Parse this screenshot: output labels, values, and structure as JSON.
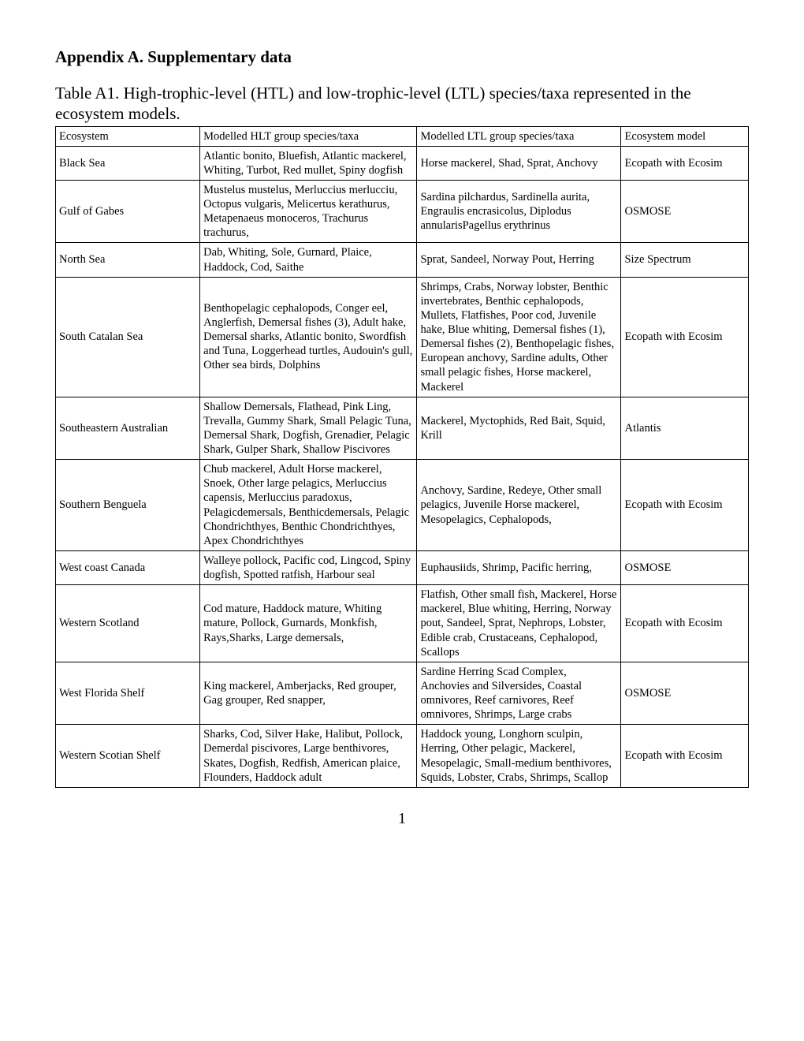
{
  "heading": "Appendix A. Supplementary data",
  "caption": "Table A1. High-trophic-level (HTL) and low-trophic-level (LTL) species/taxa represented in the ecosystem models.",
  "columns": {
    "ecosystem": "Ecosystem",
    "hlt": "Modelled HLT group species/taxa",
    "ltl": "Modelled LTL group species/taxa",
    "model": "Ecosystem model"
  },
  "rows": [
    {
      "ecosystem": "Black Sea",
      "hlt": "Atlantic bonito, Bluefish, Atlantic mackerel, Whiting, Turbot, Red mullet, Spiny dogfish",
      "ltl": "Horse mackerel, Shad, Sprat, Anchovy",
      "model": "Ecopath with Ecosim"
    },
    {
      "ecosystem": "Gulf of Gabes",
      "hlt": "Mustelus mustelus, Merluccius merlucciu, Octopus vulgaris, Melicertus kerathurus, Metapenaeus monoceros, Trachurus trachurus,",
      "ltl": "Sardina pilchardus, Sardinella aurita, Engraulis encrasicolus, Diplodus annularisPagellus erythrinus",
      "model": "OSMOSE"
    },
    {
      "ecosystem": "North Sea",
      "hlt": "Dab, Whiting, Sole, Gurnard, Plaice, Haddock, Cod, Saithe",
      "ltl": "Sprat, Sandeel, Norway Pout, Herring",
      "model": "Size Spectrum"
    },
    {
      "ecosystem": "South Catalan Sea",
      "hlt": "Benthopelagic cephalopods, Conger eel, Anglerfish, Demersal fishes (3), Adult hake, Demersal sharks, Atlantic bonito, Swordfish and Tuna, Loggerhead turtles, Audouin's gull, Other sea birds, Dolphins",
      "ltl": "Shrimps, Crabs, Norway lobster, Benthic invertebrates, Benthic cephalopods, Mullets, Flatfishes, Poor cod, Juvenile hake, Blue whiting, Demersal fishes (1), Demersal fishes (2), Benthopelagic fishes, European anchovy, Sardine adults, Other small pelagic fishes, Horse mackerel, Mackerel",
      "model": "Ecopath with Ecosim"
    },
    {
      "ecosystem": "Southeastern Australian",
      "hlt": "Shallow Demersals, Flathead, Pink Ling, Trevalla, Gummy Shark, Small Pelagic Tuna, Demersal Shark, Dogfish, Grenadier,  Pelagic Shark, Gulper Shark,  Shallow Piscivores",
      "ltl": "Mackerel, Myctophids, Red Bait, Squid, Krill",
      "model": "Atlantis"
    },
    {
      "ecosystem": "Southern Benguela",
      "hlt": "Chub mackerel, Adult Horse mackerel, Snoek, Other large pelagics, Merluccius capensis, Merluccius paradoxus, Pelagicdemersals, Benthicdemersals, Pelagic Chondrichthyes, Benthic Chondrichthyes, Apex Chondrichthyes",
      "ltl": "Anchovy, Sardine, Redeye, Other small pelagics, Juvenile Horse mackerel, Mesopelagics, Cephalopods,",
      "model": "Ecopath with Ecosim"
    },
    {
      "ecosystem": "West coast Canada",
      "hlt": "Walleye pollock, Pacific cod, Lingcod, Spiny dogfish, Spotted ratfish, Harbour seal",
      "ltl": "Euphausiids, Shrimp, Pacific herring,",
      "model": "OSMOSE"
    },
    {
      "ecosystem": "Western Scotland",
      "hlt": "Cod mature, Haddock mature, Whiting mature, Pollock, Gurnards, Monkfish, Rays,Sharks, Large demersals,",
      "ltl": "Flatfish, Other small fish, Mackerel, Horse mackerel, Blue whiting, Herring, Norway pout, Sandeel, Sprat, Nephrops, Lobster, Edible crab, Crustaceans, Cephalopod, Scallops",
      "model": "Ecopath with Ecosim"
    },
    {
      "ecosystem": "West Florida Shelf",
      "hlt": "King mackerel, Amberjacks, Red grouper, Gag grouper,  Red snapper,",
      "ltl": "Sardine Herring Scad Complex, Anchovies and Silversides, Coastal omnivores, Reef carnivores, Reef omnivores, Shrimps, Large crabs",
      "model": "OSMOSE"
    },
    {
      "ecosystem": "Western Scotian Shelf",
      "hlt": "Sharks, Cod, Silver Hake, Halibut, Pollock, Demerdal piscivores, Large benthivores, Skates, Dogfish, Redfish, American plaice, Flounders, Haddock adult",
      "ltl": "Haddock young, Longhorn sculpin, Herring, Other pelagic, Mackerel, Mesopelagic, Small-medium benthivores, Squids, Lobster, Crabs, Shrimps, Scallop",
      "model": "Ecopath with Ecosim"
    }
  ],
  "pageNumber": "1"
}
